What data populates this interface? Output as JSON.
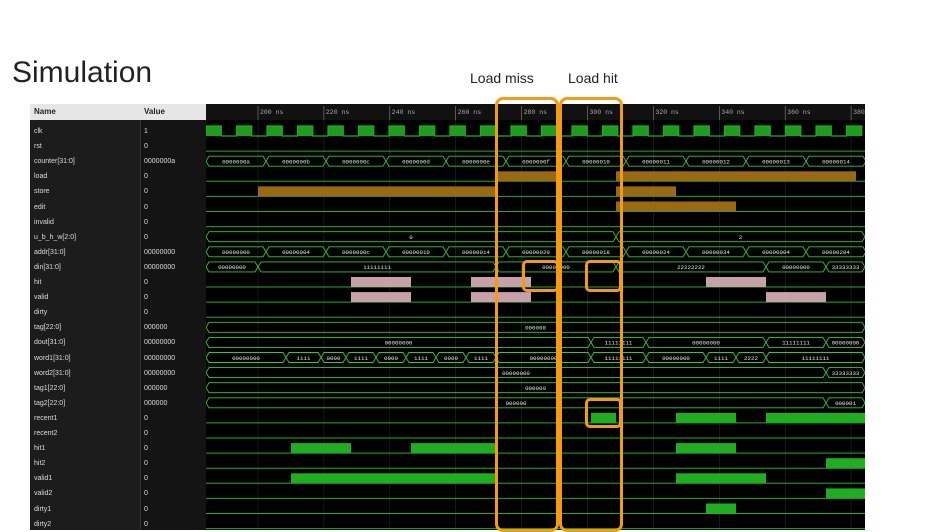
{
  "slide": {
    "title": "Simulation",
    "callouts": {
      "load_miss": "Load miss",
      "load_hit": "Load hit"
    }
  },
  "waveform": {
    "header": {
      "name": "Name",
      "value": "Value"
    },
    "time_markers": [
      "200 ns",
      "220 ns",
      "240 ns",
      "260 ns",
      "280 ns",
      "300 ns",
      "320 ns",
      "340 ns",
      "360 ns",
      "380 ns"
    ],
    "signals": [
      {
        "name": "clk",
        "value": "1"
      },
      {
        "name": "rst",
        "value": "0"
      },
      {
        "name": "counter[31:0]",
        "value": "0000000a"
      },
      {
        "name": "load",
        "value": "0"
      },
      {
        "name": "store",
        "value": "0"
      },
      {
        "name": "edit",
        "value": "0"
      },
      {
        "name": "invalid",
        "value": "0"
      },
      {
        "name": "u_b_h_w[2:0]",
        "value": "0"
      },
      {
        "name": "addr[31:0]",
        "value": "00000000"
      },
      {
        "name": "din[31:0]",
        "value": "00000000"
      },
      {
        "name": "hit",
        "value": "0"
      },
      {
        "name": "valid",
        "value": "0"
      },
      {
        "name": "dirty",
        "value": "0"
      },
      {
        "name": "tag[22:0]",
        "value": "000000"
      },
      {
        "name": "dout[31:0]",
        "value": "00000000"
      },
      {
        "name": "word1[31:0]",
        "value": "00000000"
      },
      {
        "name": "word2[31:0]",
        "value": "00000000"
      },
      {
        "name": "tag1[22:0]",
        "value": "000000"
      },
      {
        "name": "tag2[22:0]",
        "value": "000000"
      },
      {
        "name": "recent1",
        "value": "0"
      },
      {
        "name": "recent2",
        "value": "0"
      },
      {
        "name": "hit1",
        "value": "0"
      },
      {
        "name": "hit2",
        "value": "0"
      },
      {
        "name": "valid1",
        "value": "0"
      },
      {
        "name": "valid2",
        "value": "0"
      },
      {
        "name": "dirty1",
        "value": "0"
      },
      {
        "name": "dirty2",
        "value": "0"
      }
    ],
    "bus_values": {
      "counter": [
        "0000000a",
        "0000000b",
        "0000000c",
        "0000000d",
        "0000000e",
        "0000000f",
        "00000010",
        "00000011",
        "00000012",
        "00000013",
        "00000014"
      ],
      "u_b_h_w": [
        "0",
        "2"
      ],
      "addr": [
        "00000000",
        "00000004",
        "0000000c",
        "00000010",
        "00000014",
        "00000020",
        "00000018",
        "00000024",
        "00000034",
        "00000004",
        "00000204"
      ],
      "din": [
        "00000000",
        "11111111",
        "00000000",
        "22222222",
        "00000000",
        "33333333"
      ],
      "tag": [
        "000000"
      ],
      "dout": [
        "00000000",
        "11111111",
        "00000000",
        "11111111",
        "00000000"
      ],
      "word1": [
        "00000000",
        "1111",
        "0000",
        "1111",
        "0000",
        "1111",
        "0000",
        "1111",
        "00000000",
        "11111111",
        "00000000",
        "1111",
        "2222",
        "11111111"
      ],
      "word2": [
        "00000000",
        "33333333"
      ],
      "tag1": [
        "000000"
      ],
      "tag2": [
        "000000",
        "000001"
      ]
    },
    "colors": {
      "green": "#1fae1f",
      "orange": "#9a6a12",
      "pink": "#c8a0a8",
      "bus": "#2ecc2e",
      "highlight": "#f39c12"
    }
  }
}
